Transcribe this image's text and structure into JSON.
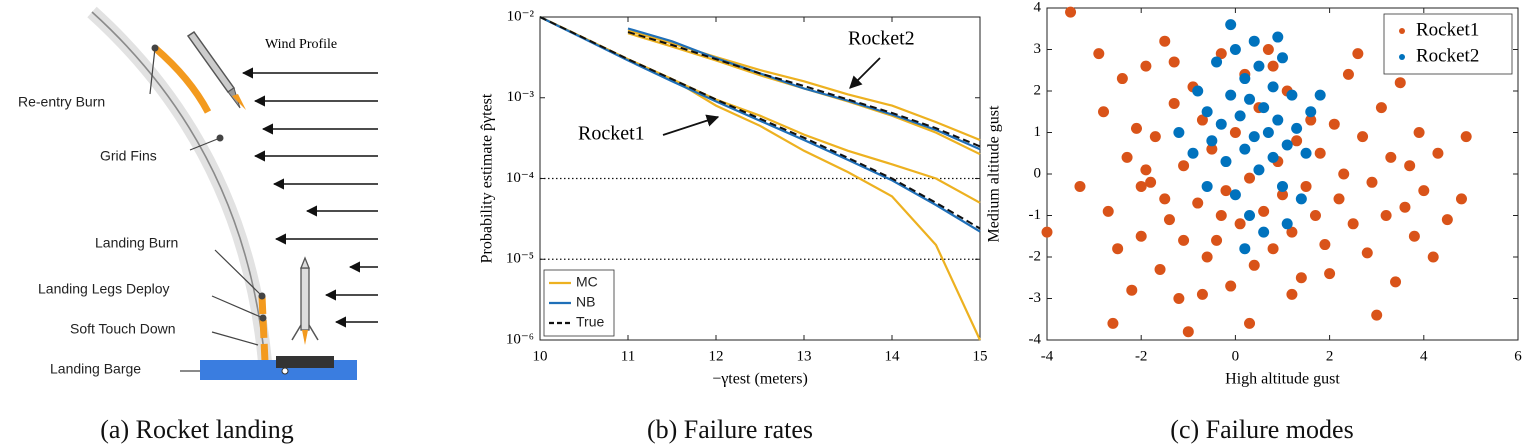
{
  "diagram": {
    "labels": [
      "Wind Profile",
      "Re-entry Burn",
      "Grid Fins",
      "Landing Burn",
      "Landing Legs Deploy",
      "Soft Touch Down",
      "Landing Barge"
    ],
    "caption": "(a) Rocket landing"
  },
  "chart_data": [
    {
      "type": "line",
      "caption": "(b) Failure rates",
      "xlabel": "−γtest (meters)",
      "ylabel": "Probability estimate p̂γtest",
      "yscale": "log",
      "xlim": [
        10,
        15
      ],
      "xticks": [
        10,
        11,
        12,
        13,
        14,
        15
      ],
      "ylim": [
        1e-06,
        0.01
      ],
      "yticks": [
        {
          "value": 1e-06,
          "label": "10⁻⁶"
        },
        {
          "value": 1e-05,
          "label": "10⁻⁵"
        },
        {
          "value": 0.0001,
          "label": "10⁻⁴"
        },
        {
          "value": 0.001,
          "label": "10⁻³"
        },
        {
          "value": 0.01,
          "label": "10⁻²"
        }
      ],
      "hlines": [
        0.0001,
        1e-05
      ],
      "annotations": [
        "Rocket1",
        "Rocket2"
      ],
      "legend": "lower left",
      "x": [
        10,
        10.5,
        11,
        11.5,
        12,
        12.5,
        13,
        13.5,
        14,
        14.5,
        15
      ],
      "series": [
        {
          "name": "MC",
          "color": "#edb120",
          "dash": false,
          "values": [
            0.01,
            0.0055,
            0.003,
            0.0017,
            0.00095,
            0.0006,
            0.00035,
            0.00022,
            0.00015,
            0.0001,
            5e-05
          ]
        },
        {
          "name": "MC",
          "color": "#edb120",
          "dash": false,
          "values": [
            0.01,
            0.0055,
            0.003,
            0.0017,
            0.0008,
            0.00045,
            0.00022,
            0.00012,
            6e-05,
            1.5e-05,
            1e-06
          ]
        },
        {
          "name": "MC",
          "color": "#edb120",
          "dash": false,
          "values": [
            null,
            null,
            0.0068,
            0.0047,
            0.0032,
            0.0022,
            0.0016,
            0.0011,
            0.0008,
            0.0005,
            0.0003
          ]
        },
        {
          "name": "MC",
          "color": "#edb120",
          "dash": false,
          "values": [
            null,
            null,
            0.0063,
            0.0043,
            0.0029,
            0.0019,
            0.0013,
            0.0009,
            0.0006,
            0.00037,
            0.0002
          ]
        },
        {
          "name": "NB",
          "color": "#1f6fb8",
          "dash": false,
          "values": [
            0.01,
            0.0054,
            0.0029,
            0.0016,
            0.0009,
            0.00052,
            0.0003,
            0.00017,
            9.5e-05,
            4.7e-05,
            2.2e-05
          ]
        },
        {
          "name": "NB",
          "color": "#1f6fb8",
          "dash": false,
          "values": [
            null,
            null,
            0.0072,
            0.005,
            0.0031,
            0.002,
            0.0013,
            0.00092,
            0.00062,
            0.0004,
            0.00023
          ]
        },
        {
          "name": "True",
          "color": "#111111",
          "dash": true,
          "values": [
            0.01,
            0.0055,
            0.003,
            0.0017,
            0.00095,
            0.00055,
            0.00032,
            0.00018,
            0.0001,
            5e-05,
            2.4e-05
          ]
        },
        {
          "name": "True",
          "color": "#111111",
          "dash": true,
          "values": [
            null,
            null,
            0.0065,
            0.0045,
            0.003,
            0.002,
            0.0014,
            0.00095,
            0.00065,
            0.00042,
            0.00025
          ]
        }
      ]
    },
    {
      "type": "scatter",
      "caption": "(c) Failure modes",
      "xlabel": "High altitude gust",
      "ylabel": "Medium altitude gust",
      "xlim": [
        -4,
        6
      ],
      "xticks": [
        -4,
        -2,
        0,
        2,
        4,
        6
      ],
      "ylim": [
        -4,
        4
      ],
      "yticks": [
        -4,
        -3,
        -2,
        -1,
        0,
        1,
        2,
        3,
        4
      ],
      "legend": "upper right",
      "series": [
        {
          "name": "Rocket1",
          "color": "#d95319",
          "x": [
            -3.5,
            -4.0,
            -3.3,
            -2.9,
            -2.8,
            -2.7,
            -2.6,
            -2.4,
            -2.3,
            -2.2,
            -2.1,
            -2.0,
            -1.9,
            -1.8,
            -1.7,
            -1.6,
            -1.5,
            -1.4,
            -1.3,
            -1.2,
            -1.1,
            -1.0,
            -0.9,
            -0.8,
            -0.7,
            -0.6,
            -0.5,
            -0.4,
            -0.3,
            -0.2,
            -0.1,
            0.0,
            0.1,
            0.2,
            0.3,
            0.4,
            0.5,
            0.6,
            0.7,
            0.8,
            0.9,
            1.0,
            1.1,
            1.2,
            1.3,
            1.4,
            1.5,
            1.6,
            1.7,
            1.8,
            1.9,
            2.0,
            2.1,
            2.2,
            2.3,
            2.4,
            2.5,
            2.6,
            2.7,
            2.8,
            2.9,
            3.0,
            3.1,
            3.2,
            3.3,
            3.4,
            3.5,
            3.6,
            3.7,
            3.8,
            3.9,
            4.0,
            4.2,
            4.3,
            4.5,
            4.9,
            4.8,
            -1.1,
            -0.7,
            -1.9,
            -2.5,
            0.3,
            1.2,
            -0.3,
            -1.5,
            -2.0,
            0.8,
            -1.3
          ],
          "y": [
            3.9,
            -1.4,
            -0.3,
            2.9,
            1.5,
            -0.9,
            -3.6,
            2.3,
            0.4,
            -2.8,
            1.1,
            -1.5,
            2.6,
            -0.2,
            0.9,
            -2.3,
            3.2,
            -1.1,
            1.7,
            -3.0,
            0.2,
            -3.8,
            2.1,
            -0.7,
            1.3,
            -2.0,
            0.6,
            -1.6,
            2.9,
            -0.4,
            -2.7,
            1.0,
            -1.2,
            2.4,
            -0.1,
            -2.2,
            1.6,
            -0.9,
            3.0,
            -1.8,
            0.3,
            -0.5,
            2.0,
            -1.4,
            0.8,
            -2.5,
            -0.3,
            1.3,
            -1.0,
            0.5,
            -1.7,
            -2.4,
            1.2,
            -0.6,
            0.0,
            2.4,
            -1.2,
            2.9,
            0.9,
            -1.9,
            -0.2,
            -3.4,
            1.6,
            -1.0,
            0.4,
            -2.6,
            2.2,
            -0.8,
            0.2,
            -1.5,
            1.0,
            -0.4,
            -2.0,
            0.5,
            -1.1,
            0.9,
            -0.6,
            -1.6,
            -2.9,
            0.1,
            -1.8,
            -3.6,
            -2.9,
            -1.0,
            -0.6,
            -0.3,
            2.6,
            2.7
          ]
        },
        {
          "name": "Rocket2",
          "color": "#0072bd",
          "x": [
            -0.8,
            -0.6,
            -0.5,
            -0.4,
            -0.3,
            -0.2,
            -0.1,
            0.0,
            0.0,
            0.1,
            0.2,
            0.2,
            0.3,
            0.3,
            0.4,
            0.5,
            0.5,
            0.6,
            0.6,
            0.7,
            0.8,
            0.8,
            0.9,
            0.9,
            1.0,
            1.0,
            1.1,
            1.2,
            1.3,
            1.4,
            1.5,
            1.6,
            -0.1,
            -0.9,
            -1.2,
            -0.6,
            0.4,
            1.1,
            0.2,
            1.8
          ],
          "y": [
            2.0,
            1.5,
            0.8,
            2.7,
            1.2,
            0.3,
            1.9,
            3.0,
            -0.5,
            1.4,
            0.6,
            2.3,
            1.8,
            -1.0,
            0.9,
            2.6,
            0.1,
            1.6,
            -1.4,
            1.0,
            2.1,
            0.4,
            3.3,
            1.3,
            -0.3,
            2.8,
            0.7,
            1.9,
            1.1,
            -0.6,
            0.5,
            1.5,
            3.6,
            0.5,
            1.0,
            -0.3,
            3.2,
            -1.2,
            -1.8,
            1.9
          ]
        }
      ]
    }
  ]
}
